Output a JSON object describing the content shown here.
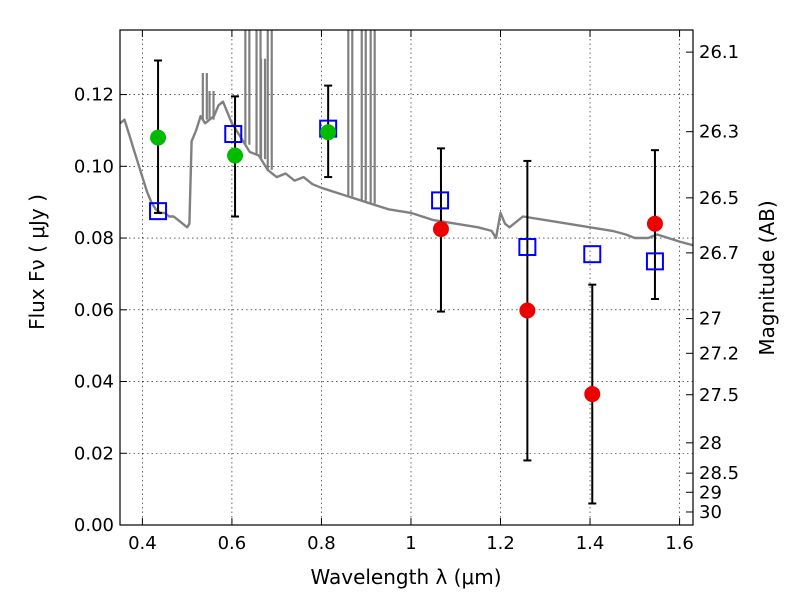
{
  "chart_data": {
    "type": "scatter",
    "title": "",
    "xlabel": "Wavelength  λ (μm)",
    "ylabel": "Flux  Fν  ( μJy )",
    "ylabel_right": "Magnitude (AB)",
    "xlim": [
      0.35,
      1.63
    ],
    "ylim": [
      0.0,
      0.138
    ],
    "x_ticks": [
      0.4,
      0.6,
      0.8,
      1.0,
      1.2,
      1.4,
      1.6
    ],
    "x_tick_labels": [
      "0.4",
      "0.6",
      "0.8",
      "1",
      "1.2",
      "1.4",
      "1.6"
    ],
    "y_ticks": [
      0.0,
      0.02,
      0.04,
      0.06,
      0.08,
      0.1,
      0.12
    ],
    "y_tick_labels": [
      "0.00",
      "0.02",
      "0.04",
      "0.06",
      "0.08",
      "0.10",
      "0.12"
    ],
    "right_ticks": [
      26.1,
      26.3,
      26.5,
      26.7,
      27,
      27.2,
      27.5,
      28,
      28.5,
      29,
      30
    ],
    "right_tick_labels": [
      "26.1",
      "26.3",
      "26.5",
      "26.7",
      "27",
      "27.2",
      "27.5",
      "28",
      "28.5",
      "29",
      "30"
    ],
    "grid": true,
    "colors": {
      "template": "#808080",
      "model_marker": "#0000ff",
      "obs_optical": "#00bb00",
      "obs_nir": "#ee0000",
      "errorbar": "#000000"
    },
    "template_spectrum": {
      "x": [
        0.35,
        0.36,
        0.37,
        0.38,
        0.39,
        0.4,
        0.41,
        0.42,
        0.43,
        0.44,
        0.45,
        0.46,
        0.47,
        0.48,
        0.49,
        0.5,
        0.505,
        0.51,
        0.52,
        0.53,
        0.54,
        0.55,
        0.56,
        0.57,
        0.58,
        0.6,
        0.62,
        0.64,
        0.66,
        0.68,
        0.7,
        0.72,
        0.74,
        0.76,
        0.78,
        0.8,
        0.85,
        0.9,
        0.95,
        1.0,
        1.05,
        1.1,
        1.15,
        1.18,
        1.19,
        1.2,
        1.21,
        1.22,
        1.25,
        1.3,
        1.35,
        1.4,
        1.45,
        1.48,
        1.5,
        1.53,
        1.55,
        1.6,
        1.63
      ],
      "y": [
        0.112,
        0.113,
        0.109,
        0.105,
        0.101,
        0.097,
        0.093,
        0.09,
        0.088,
        0.087,
        0.087,
        0.086,
        0.086,
        0.085,
        0.084,
        0.083,
        0.084,
        0.107,
        0.11,
        0.114,
        0.112,
        0.113,
        0.114,
        0.117,
        0.118,
        0.112,
        0.108,
        0.104,
        0.103,
        0.099,
        0.097,
        0.098,
        0.096,
        0.097,
        0.095,
        0.094,
        0.092,
        0.09,
        0.088,
        0.087,
        0.085,
        0.084,
        0.083,
        0.082,
        0.08,
        0.087,
        0.084,
        0.083,
        0.086,
        0.085,
        0.084,
        0.083,
        0.082,
        0.081,
        0.08,
        0.08,
        0.081,
        0.079,
        0.078
      ]
    },
    "template_lines": [
      {
        "x": 0.63,
        "y_top": 0.138
      },
      {
        "x": 0.655,
        "y_top": 0.138
      },
      {
        "x": 0.665,
        "y_top": 0.13
      },
      {
        "x": 0.68,
        "y_top": 0.138
      },
      {
        "x": 0.86,
        "y_top": 0.138
      },
      {
        "x": 0.89,
        "y_top": 0.138
      },
      {
        "x": 0.91,
        "y_top": 0.138
      },
      {
        "x": 0.535,
        "y_top": 0.126
      },
      {
        "x": 0.55,
        "y_top": 0.121
      }
    ],
    "series": [
      {
        "marker": "square",
        "x": [
          0.435,
          0.603,
          0.815,
          1.065,
          1.26,
          1.405,
          1.545
        ],
        "y": [
          0.0875,
          0.109,
          0.1105,
          0.0905,
          0.0775,
          0.0755,
          0.0735
        ]
      },
      {
        "marker": "circle",
        "color_key": "obs_optical",
        "x": [
          0.435,
          0.607,
          0.815
        ],
        "y": [
          0.108,
          0.103,
          0.1095
        ],
        "yerr_low": [
          0.087,
          0.086,
          0.097
        ],
        "yerr_high": [
          0.1295,
          0.1195,
          0.1225
        ]
      },
      {
        "marker": "circle",
        "color_key": "obs_nir",
        "x": [
          1.067,
          1.26,
          1.405,
          1.545
        ],
        "y": [
          0.0825,
          0.0598,
          0.0365,
          0.084
        ],
        "yerr_low": [
          0.0595,
          0.018,
          0.006,
          0.063
        ],
        "yerr_high": [
          0.105,
          0.1015,
          0.067,
          0.1045
        ]
      }
    ]
  }
}
